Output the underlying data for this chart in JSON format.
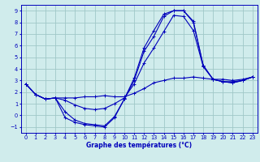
{
  "title": "Graphe des températures (°C)",
  "bg_color": "#d0ecec",
  "grid_color": "#a0c8c8",
  "line_color": "#0000bb",
  "xlim": [
    -0.5,
    23.5
  ],
  "ylim": [
    -1.5,
    9.5
  ],
  "xticks": [
    0,
    1,
    2,
    3,
    4,
    5,
    6,
    7,
    8,
    9,
    10,
    11,
    12,
    13,
    14,
    15,
    16,
    17,
    18,
    19,
    20,
    21,
    22,
    23
  ],
  "yticks": [
    -1,
    0,
    1,
    2,
    3,
    4,
    5,
    6,
    7,
    8,
    9
  ],
  "curves": [
    [
      2.7,
      1.8,
      1.4,
      1.5,
      1.5,
      1.5,
      1.6,
      1.6,
      1.7,
      1.6,
      1.6,
      1.9,
      2.3,
      2.8,
      3.0,
      3.2,
      3.2,
      3.3,
      3.2,
      3.1,
      3.1,
      3.0,
      3.1,
      3.3
    ],
    [
      2.7,
      1.8,
      1.4,
      1.5,
      0.3,
      -0.4,
      -0.7,
      -0.8,
      -0.9,
      -0.1,
      1.4,
      3.2,
      5.8,
      7.3,
      8.7,
      9.0,
      9.0,
      8.1,
      4.3,
      3.1,
      2.9,
      2.8,
      3.0,
      3.3
    ],
    [
      2.7,
      1.8,
      1.4,
      1.5,
      1.3,
      0.9,
      0.6,
      0.5,
      0.6,
      1.0,
      1.5,
      2.7,
      4.5,
      5.8,
      7.2,
      8.6,
      8.5,
      7.3,
      4.2,
      3.1,
      2.9,
      2.9,
      3.0,
      3.3
    ],
    [
      2.7,
      1.8,
      1.4,
      1.5,
      -0.2,
      -0.6,
      -0.8,
      -0.9,
      -1.0,
      -0.2,
      1.4,
      3.0,
      5.5,
      6.8,
      8.5,
      9.0,
      9.0,
      8.0,
      4.3,
      3.1,
      2.9,
      2.8,
      3.0,
      3.3
    ]
  ]
}
